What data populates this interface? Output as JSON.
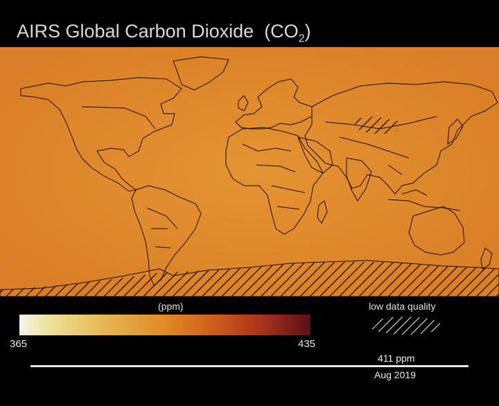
{
  "title": {
    "main": "AIRS Global Carbon Dioxide",
    "formula_prefix": "(CO",
    "formula_sub": "2",
    "formula_suffix": ")"
  },
  "legend": {
    "unit_label": "(ppm)",
    "min": "365",
    "max": "435",
    "low_quality_label": "low data quality"
  },
  "readout": {
    "value": "411 ppm",
    "date": "Aug 2019"
  },
  "colors": {
    "background": "#000000",
    "map_fill": "#de8a2c",
    "hatch": "#3a1a0a"
  }
}
